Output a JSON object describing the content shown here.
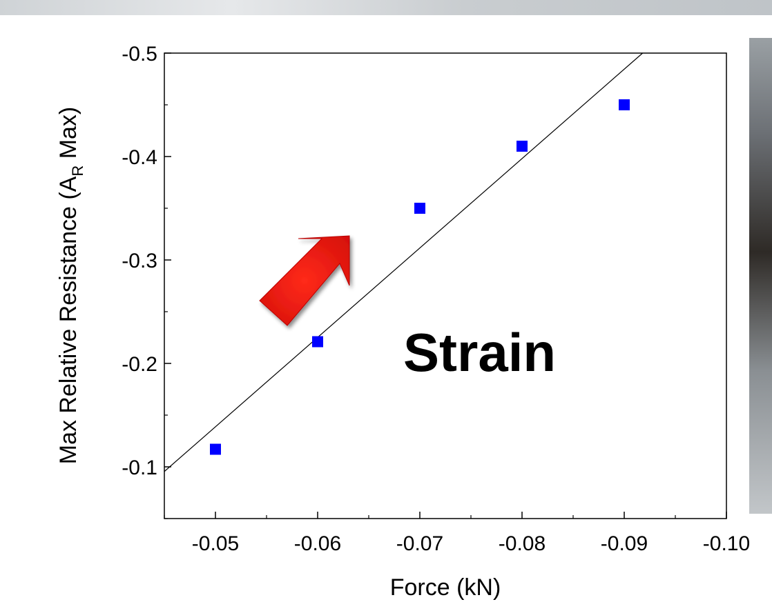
{
  "chart_data": {
    "type": "scatter",
    "xlabel": "Force (kN)",
    "ylabel": {
      "prefix": "Max Relative Resistance (A",
      "subscript": "R",
      "suffix": " Max)"
    },
    "xlim": [
      -0.045,
      -0.1
    ],
    "ylim": [
      -0.05,
      -0.5
    ],
    "x_ticks": [
      -0.05,
      -0.06,
      -0.07,
      -0.08,
      -0.09,
      -0.1
    ],
    "x_tick_labels": [
      "-0.05",
      "-0.06",
      "-0.07",
      "-0.08",
      "-0.09",
      "-0.10"
    ],
    "y_ticks": [
      -0.1,
      -0.2,
      -0.3,
      -0.4,
      -0.5
    ],
    "y_tick_labels": [
      "-0.1",
      "-0.2",
      "-0.3",
      "-0.4",
      "-0.5"
    ],
    "grid": false,
    "series": [
      {
        "marker": "square",
        "color": "#0000ff",
        "points": [
          {
            "x": -0.05,
            "y": -0.117
          },
          {
            "x": -0.06,
            "y": -0.221
          },
          {
            "x": -0.07,
            "y": -0.35
          },
          {
            "x": -0.08,
            "y": -0.41
          },
          {
            "x": -0.09,
            "y": -0.45
          }
        ]
      }
    ],
    "fit_line": {
      "color": "#000000",
      "x": [
        -0.045,
        -0.0918
      ],
      "y": [
        -0.0955,
        -0.5
      ]
    },
    "annotations": [
      {
        "text": "Strain",
        "style": "bold"
      }
    ],
    "arrow": {
      "color": "#ee1111",
      "direction": "up-right"
    }
  }
}
